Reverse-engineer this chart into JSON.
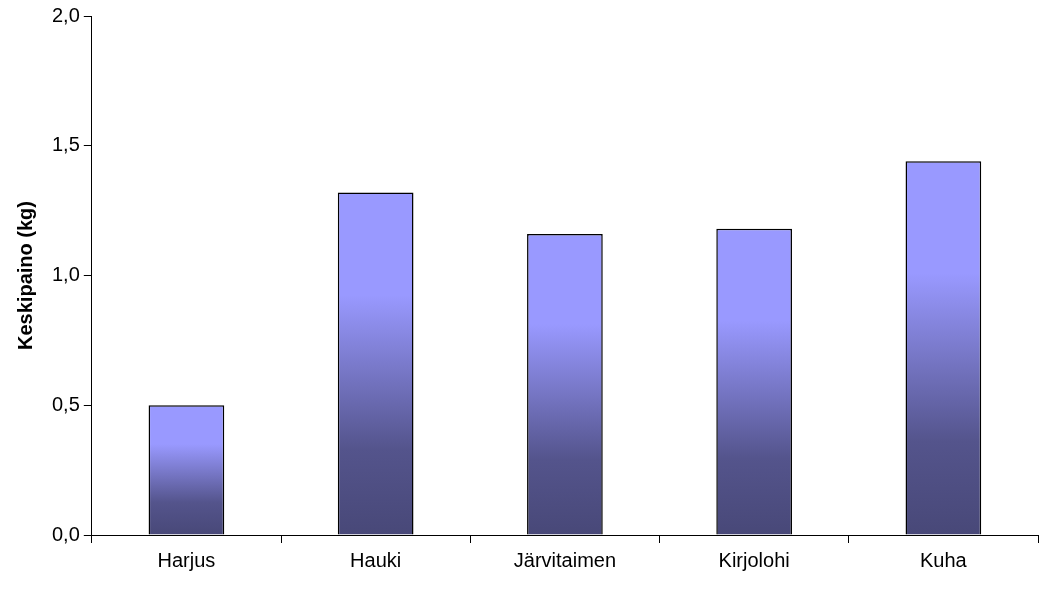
{
  "chart_data": {
    "type": "bar",
    "ylabel": "Keskipaino (kg)",
    "categories": [
      "Harjus",
      "Hauki",
      "Järvitaimen",
      "Kirjolohi",
      "Kuha"
    ],
    "values": [
      0.5,
      1.32,
      1.16,
      1.18,
      1.44
    ],
    "color": "#9999ff",
    "ylim": [
      0,
      2
    ],
    "yticks": [
      {
        "value": 0,
        "label": "0,0"
      },
      {
        "value": 0.5,
        "label": "0,5"
      },
      {
        "value": 1,
        "label": "1,0"
      },
      {
        "value": 1.5,
        "label": "1,5"
      },
      {
        "value": 2,
        "label": "2,0"
      }
    ],
    "grid": false,
    "legend": false
  }
}
